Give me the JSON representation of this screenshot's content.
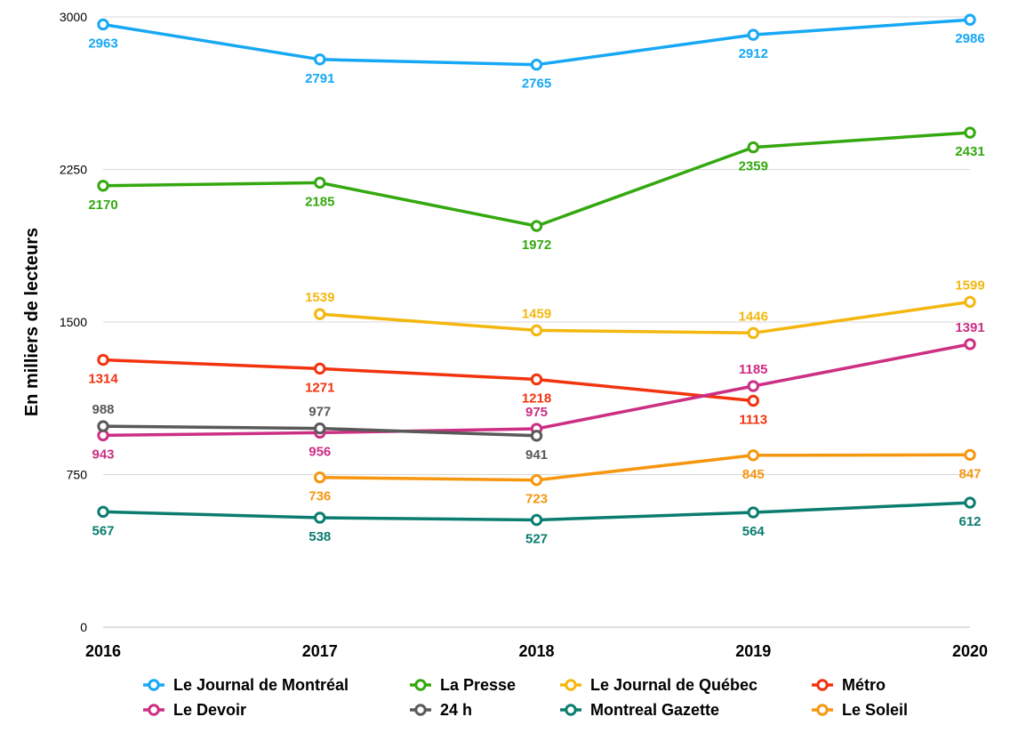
{
  "chart_data": {
    "type": "line",
    "title": "",
    "xlabel": "",
    "ylabel": "En milliers de lecteurs",
    "ylim": [
      0,
      3000
    ],
    "yticks": [
      0,
      750,
      1500,
      2250,
      3000
    ],
    "x": [
      "2016",
      "2017",
      "2018",
      "2019",
      "2020"
    ],
    "grid": "horizontal",
    "legend": "bottom",
    "series": [
      {
        "name": "Le Journal de Montréal",
        "color": "#17a8f5",
        "values": [
          2963,
          2791,
          2765,
          2912,
          2986
        ],
        "label_pos": [
          "below",
          "below",
          "below",
          "below",
          "below"
        ]
      },
      {
        "name": "La Presse",
        "color": "#34a80f",
        "values": [
          2170,
          2185,
          1972,
          2359,
          2431
        ],
        "label_pos": [
          "below",
          "below",
          "below",
          "below",
          "below"
        ]
      },
      {
        "name": "Le Journal de Québec",
        "color": "#f4b710",
        "values": [
          null,
          1539,
          1459,
          1446,
          1599
        ],
        "label_pos": [
          null,
          "above",
          "above",
          "above",
          "above"
        ]
      },
      {
        "name": "Métro",
        "color": "#f2330e",
        "values": [
          1314,
          1271,
          1218,
          1113,
          null
        ],
        "label_pos": [
          "below",
          "below",
          "below",
          "below",
          null
        ]
      },
      {
        "name": "Le Devoir",
        "color": "#cc2f83",
        "values": [
          943,
          956,
          975,
          1185,
          1391
        ],
        "label_pos": [
          "below",
          "below",
          "above",
          "above",
          "above"
        ]
      },
      {
        "name": "24 h",
        "color": "#595959",
        "values": [
          988,
          977,
          941,
          null,
          null
        ],
        "label_pos": [
          "above",
          "above",
          "below",
          null,
          null
        ]
      },
      {
        "name": "Montreal Gazette",
        "color": "#0b7d70",
        "values": [
          567,
          538,
          527,
          564,
          612
        ],
        "label_pos": [
          "below",
          "below",
          "below",
          "below",
          "below"
        ]
      },
      {
        "name": "Le Soleil",
        "color": "#f7960f",
        "values": [
          null,
          736,
          723,
          845,
          847
        ],
        "label_pos": [
          null,
          "below",
          "below",
          "below",
          "below"
        ]
      }
    ]
  }
}
